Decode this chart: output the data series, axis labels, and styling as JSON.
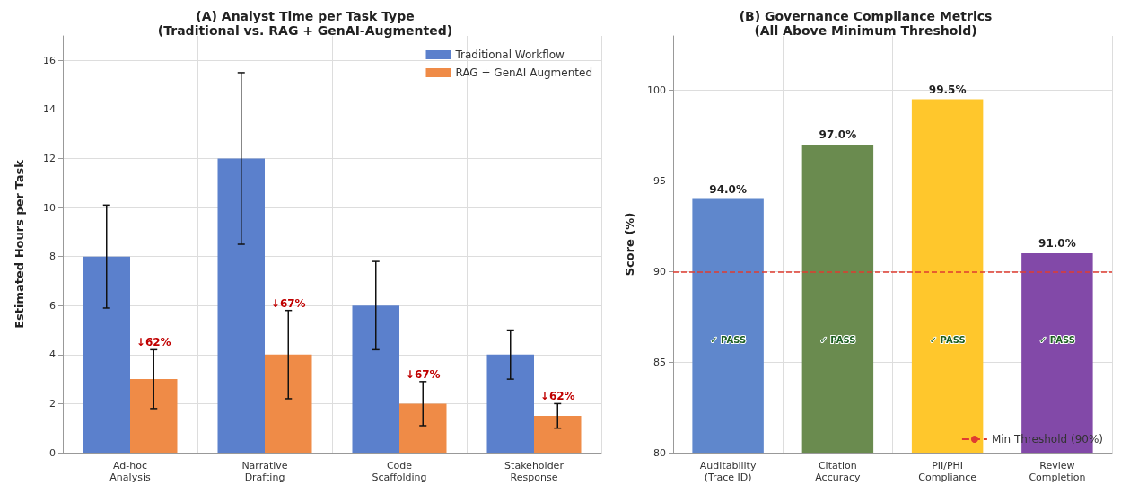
{
  "chart_data": [
    {
      "type": "bar",
      "title": "(A) Analyst Time per Task Type\n(Traditional vs. RAG + GenAI-Augmented)",
      "ylabel": "Estimated Hours per Task",
      "categories": [
        "Ad-hoc\nAnalysis",
        "Narrative\nDrafting",
        "Code\nScaffolding",
        "Stakeholder\nResponse"
      ],
      "series": [
        {
          "name": "Traditional Workflow",
          "color": "#5b80cc",
          "values": [
            8,
            12,
            6,
            4
          ],
          "errors": [
            2.1,
            3.5,
            1.8,
            1
          ]
        },
        {
          "name": "RAG + GenAI Augmented",
          "color": "#ef8b47",
          "values": [
            3,
            4,
            2,
            1.5
          ],
          "errors": [
            1.2,
            1.8,
            0.9,
            0.5
          ]
        }
      ],
      "ylim": [
        0,
        17
      ],
      "yticks": [
        0,
        2,
        4,
        6,
        8,
        10,
        12,
        14,
        16
      ],
      "grid": true,
      "legend": "top right",
      "annotations": [
        {
          "text": "↓62%",
          "x": "Ad-hoc\nAnalysis",
          "y": 4.5
        },
        {
          "text": "↓67%",
          "x": "Narrative\nDrafting",
          "y": 6.1
        },
        {
          "text": "↓67%",
          "x": "Code\nScaffolding",
          "y": 3.2
        },
        {
          "text": "↓62%",
          "x": "Stakeholder\nResponse",
          "y": 2.3
        }
      ]
    },
    {
      "type": "bar",
      "title": "(B) Governance Compliance Metrics\n(All Above Minimum Threshold)",
      "ylabel": "Score (%)",
      "categories": [
        "Auditability\n(Trace ID)",
        "Citation\nAccuracy",
        "PII/PHI\nCompliance",
        "Review\nCompletion"
      ],
      "values": [
        94,
        97,
        99.5,
        91
      ],
      "colors": [
        "#5f87cc",
        "#6a8b4f",
        "#ffc72c",
        "#8249a8"
      ],
      "value_labels": [
        "94.0%",
        "97.0%",
        "99.5%",
        "91.0%"
      ],
      "ylim": [
        80,
        103
      ],
      "yticks": [
        80,
        85,
        90,
        95,
        100
      ],
      "grid": true,
      "legend": "bottom right",
      "ref_lines": [
        {
          "axis": "y",
          "value": 90,
          "label": "Min Threshold (90%)",
          "color": "#e03c31",
          "line_style": "dashed"
        }
      ],
      "annotations": [
        "✓ PASS",
        "✓ PASS",
        "✓ PASS",
        "✓ PASS"
      ]
    }
  ]
}
